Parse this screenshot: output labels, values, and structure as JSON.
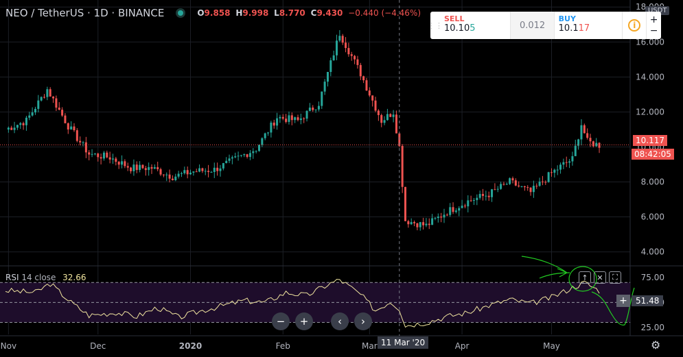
{
  "header": {
    "symbol": "NEO / TetherUS",
    "interval": "1D",
    "exchange": "BINANCE",
    "o_label": "O",
    "o": "9.858",
    "h_label": "H",
    "h": "9.998",
    "l_label": "L",
    "l": "8.770",
    "c_label": "C",
    "c": "9.430",
    "change": "−0.440 (−4.46%)"
  },
  "trade": {
    "sell_label": "SELL",
    "sell_main": "10.10",
    "sell_hl": "5",
    "spread": "0.012",
    "buy_label": "BUY",
    "buy_main": "10.1",
    "buy_hl": "17",
    "info": "i",
    "plus": "+",
    "minus": "−"
  },
  "unit_label": "USDT",
  "price_tag": "10.117",
  "countdown": "08:42:05",
  "rsi": {
    "name": "RSI",
    "params": "14 close",
    "value": "32.66",
    "cursor_value": "51.48",
    "plus": "+"
  },
  "crosshair_date": "11 Mar '20",
  "nav": {
    "zoom_out": "−",
    "zoom_in": "+",
    "left": "‹",
    "right": "›"
  },
  "rsi_tools": {
    "up": "↑",
    "close": "✕",
    "expand": "⛶"
  },
  "colors": {
    "up": "#26a69a",
    "down": "#ef5350",
    "rsi_line": "#f2e6a0",
    "rsi_band": "#1e0d2b",
    "grid": "#1c1f26",
    "annotation": "#22cc22"
  },
  "chart_data": [
    {
      "type": "candlestick",
      "title": "NEO / TetherUS 1D BINANCE",
      "x_tick_labels": [
        "Nov",
        "Dec",
        "2020",
        "Feb",
        "Mar",
        "Apr",
        "May"
      ],
      "y_tick_labels": [
        "4.000",
        "6.000",
        "8.000",
        "10.000",
        "12.000",
        "14.000",
        "16.000",
        "18.000"
      ],
      "ylim": [
        3.2,
        18.4
      ],
      "last_price": 10.117,
      "close_path": [
        [
          "2019-10-31",
          11.0
        ],
        [
          "2019-11-07",
          11.5
        ],
        [
          "2019-11-14",
          13.3
        ],
        [
          "2019-11-21",
          11.2
        ],
        [
          "2019-11-28",
          9.6
        ],
        [
          "2019-12-05",
          9.4
        ],
        [
          "2019-12-12",
          8.8
        ],
        [
          "2019-12-19",
          8.8
        ],
        [
          "2019-12-26",
          8.3
        ],
        [
          "2020-01-02",
          8.6
        ],
        [
          "2020-01-09",
          8.7
        ],
        [
          "2020-01-16",
          9.3
        ],
        [
          "2020-01-23",
          9.9
        ],
        [
          "2020-01-30",
          11.7
        ],
        [
          "2020-02-06",
          11.5
        ],
        [
          "2020-02-13",
          12.5
        ],
        [
          "2020-02-20",
          16.5
        ],
        [
          "2020-02-27",
          14.2
        ],
        [
          "2020-03-05",
          11.5
        ],
        [
          "2020-03-09",
          12.0
        ],
        [
          "2020-03-11",
          10.0
        ],
        [
          "2020-03-13",
          5.8
        ],
        [
          "2020-03-20",
          5.5
        ],
        [
          "2020-03-27",
          6.3
        ],
        [
          "2020-04-03",
          6.9
        ],
        [
          "2020-04-10",
          7.3
        ],
        [
          "2020-04-17",
          8.0
        ],
        [
          "2020-04-24",
          7.4
        ],
        [
          "2020-05-01",
          8.5
        ],
        [
          "2020-05-05",
          9.0
        ],
        [
          "2020-05-08",
          9.3
        ],
        [
          "2020-05-11",
          11.3
        ],
        [
          "2020-05-13",
          10.3
        ],
        [
          "2020-05-17",
          10.1
        ]
      ]
    },
    {
      "type": "line",
      "title": "RSI 14 close",
      "y_tick_labels": [
        "25.00",
        "50.00",
        "75.00"
      ],
      "ylim": [
        18,
        86
      ],
      "bands": [
        30,
        70
      ],
      "series": [
        {
          "name": "RSI",
          "values": [
            [
              "2019-10-31",
              62
            ],
            [
              "2019-11-10",
              60
            ],
            [
              "2019-11-15",
              69
            ],
            [
              "2019-11-22",
              50
            ],
            [
              "2019-11-28",
              37
            ],
            [
              "2019-12-07",
              40
            ],
            [
              "2019-12-14",
              36
            ],
            [
              "2019-12-21",
              45
            ],
            [
              "2019-12-28",
              35
            ],
            [
              "2020-01-05",
              42
            ],
            [
              "2020-01-12",
              47
            ],
            [
              "2020-01-19",
              52
            ],
            [
              "2020-01-26",
              50
            ],
            [
              "2020-02-02",
              60
            ],
            [
              "2020-02-09",
              57
            ],
            [
              "2020-02-16",
              68
            ],
            [
              "2020-02-20",
              73
            ],
            [
              "2020-02-27",
              58
            ],
            [
              "2020-03-03",
              42
            ],
            [
              "2020-03-08",
              51
            ],
            [
              "2020-03-11",
              44
            ],
            [
              "2020-03-13",
              27
            ],
            [
              "2020-03-20",
              30
            ],
            [
              "2020-03-27",
              36
            ],
            [
              "2020-04-03",
              40
            ],
            [
              "2020-04-10",
              47
            ],
            [
              "2020-04-17",
              53
            ],
            [
              "2020-04-24",
              49
            ],
            [
              "2020-05-01",
              55
            ],
            [
              "2020-05-08",
              65
            ],
            [
              "2020-05-12",
              70
            ],
            [
              "2020-05-17",
              62
            ]
          ]
        }
      ]
    }
  ]
}
